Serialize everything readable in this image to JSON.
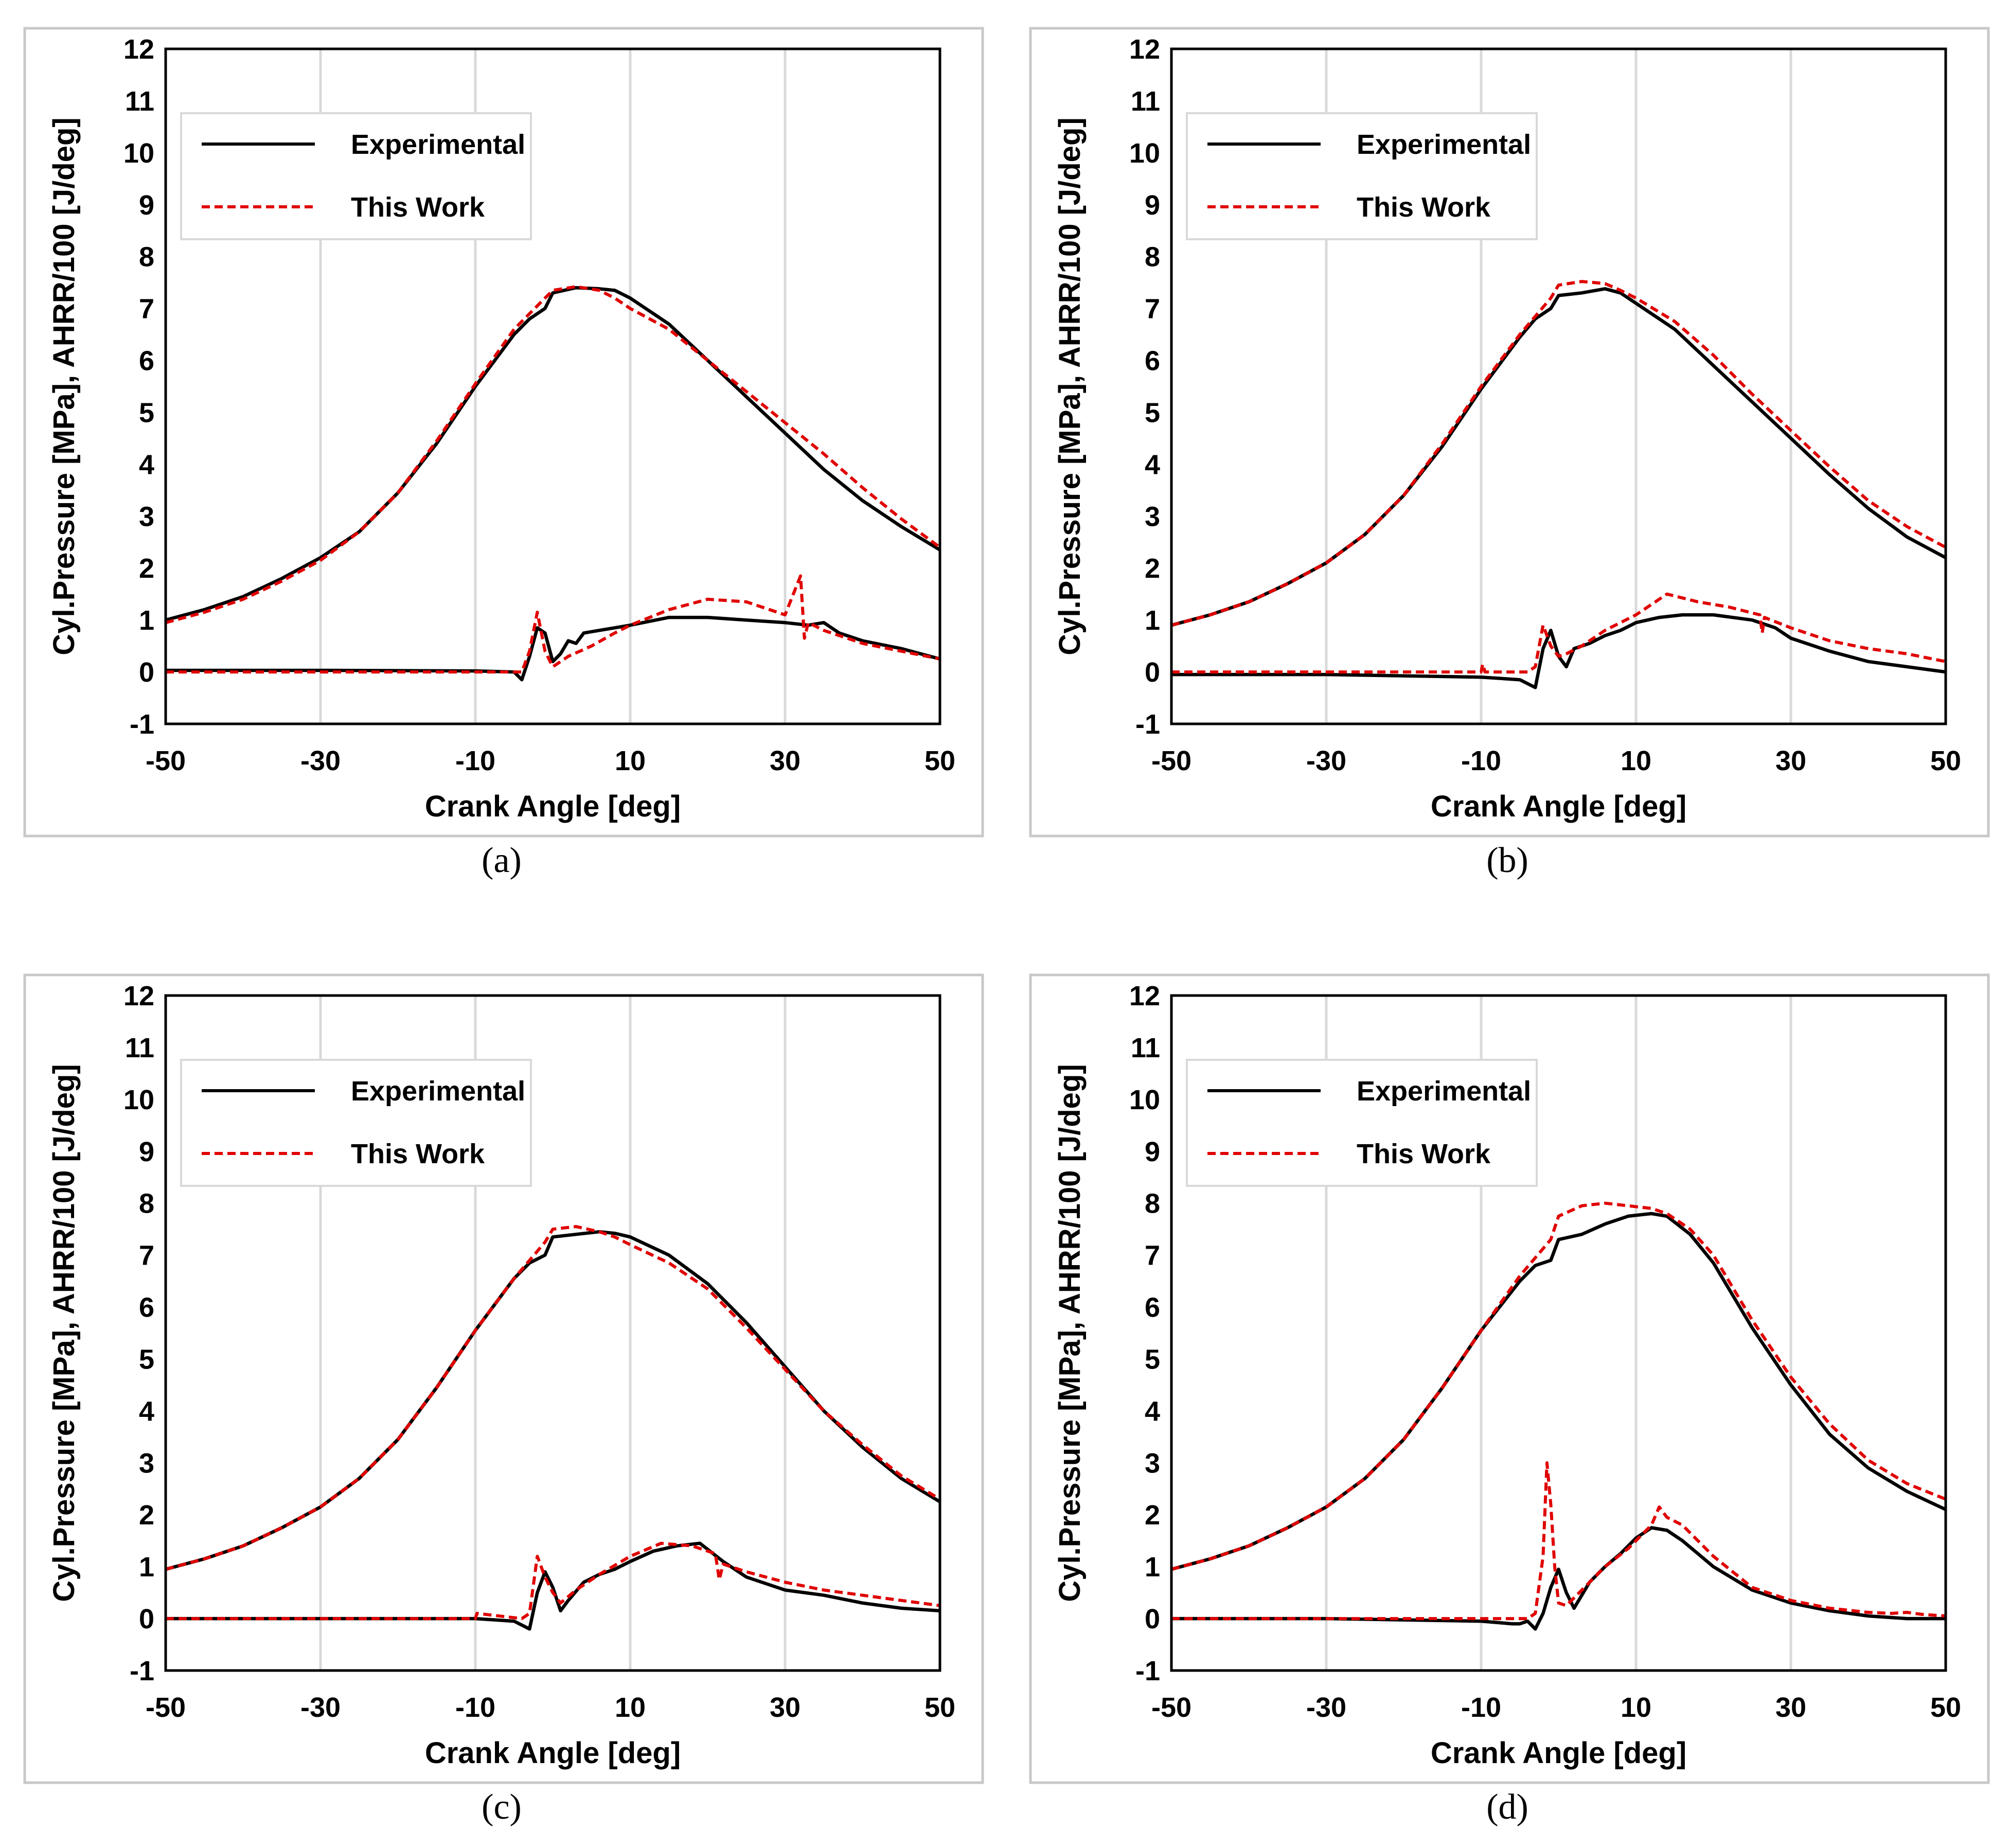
{
  "chart_data": [
    {
      "type": "line",
      "panel": "a",
      "caption": "(a)",
      "xlabel": "Crank Angle [deg]",
      "ylabel": "Cyl.Pressure [MPa], AHRR/100 [J/deg]",
      "xlim": [
        -50,
        50
      ],
      "ylim": [
        -1,
        12
      ],
      "xticks": [
        "-50",
        "-30",
        "-10",
        "10",
        "30",
        "50"
      ],
      "yticks": [
        "-1",
        "0",
        "1",
        "2",
        "3",
        "4",
        "5",
        "6",
        "7",
        "8",
        "9",
        "10",
        "11",
        "12"
      ],
      "grid": "vertical",
      "legend": {
        "position": "top-left",
        "entries": [
          "Experimental",
          "This Work"
        ]
      },
      "series": [
        {
          "name": "Experimental",
          "role": "pressure",
          "color": "#000000",
          "style": "solid",
          "x": [
            -50,
            -45,
            -40,
            -35,
            -30,
            -25,
            -20,
            -15,
            -10,
            -5,
            -3,
            -1,
            0,
            3,
            6,
            8,
            10,
            15,
            20,
            25,
            30,
            35,
            40,
            45,
            50
          ],
          "y": [
            1.0,
            1.2,
            1.45,
            1.8,
            2.2,
            2.7,
            3.45,
            4.4,
            5.5,
            6.5,
            6.8,
            7.0,
            7.3,
            7.4,
            7.38,
            7.35,
            7.2,
            6.7,
            6.0,
            5.3,
            4.6,
            3.9,
            3.3,
            2.8,
            2.35
          ]
        },
        {
          "name": "This Work",
          "role": "pressure",
          "color": "#e00000",
          "style": "dashed",
          "x": [
            -50,
            -45,
            -40,
            -35,
            -30,
            -25,
            -20,
            -15,
            -10,
            -5,
            -3,
            -1,
            0,
            3,
            6,
            8,
            10,
            15,
            20,
            25,
            30,
            35,
            40,
            45,
            50
          ],
          "y": [
            0.95,
            1.15,
            1.4,
            1.75,
            2.15,
            2.7,
            3.45,
            4.45,
            5.55,
            6.6,
            6.9,
            7.2,
            7.35,
            7.42,
            7.35,
            7.2,
            7.0,
            6.6,
            6.0,
            5.4,
            4.8,
            4.2,
            3.55,
            2.95,
            2.4
          ]
        },
        {
          "name": "Experimental",
          "role": "ahrr",
          "color": "#000000",
          "style": "solid",
          "x": [
            -50,
            -30,
            -10,
            -5,
            -4,
            -3,
            -2,
            -1,
            0,
            1,
            2,
            3,
            4,
            6,
            8,
            10,
            15,
            20,
            25,
            30,
            33,
            35,
            37,
            40,
            45,
            50
          ],
          "y": [
            0.03,
            0.03,
            0.02,
            0.0,
            -0.15,
            0.3,
            0.85,
            0.75,
            0.2,
            0.35,
            0.6,
            0.55,
            0.75,
            0.8,
            0.85,
            0.9,
            1.05,
            1.05,
            1.0,
            0.95,
            0.9,
            0.95,
            0.75,
            0.6,
            0.45,
            0.25
          ]
        },
        {
          "name": "This Work",
          "role": "ahrr",
          "color": "#e00000",
          "style": "dashed",
          "x": [
            -50,
            -30,
            -10,
            -4,
            -3,
            -2,
            -1,
            0,
            1,
            2,
            5,
            8,
            10,
            15,
            20,
            25,
            30,
            32,
            32.5,
            33,
            35,
            40,
            45,
            50
          ],
          "y": [
            0.0,
            0.0,
            0.0,
            0.0,
            0.4,
            1.15,
            0.4,
            0.1,
            0.2,
            0.3,
            0.5,
            0.75,
            0.9,
            1.2,
            1.4,
            1.35,
            1.1,
            1.85,
            0.65,
            0.95,
            0.8,
            0.55,
            0.4,
            0.25
          ]
        }
      ]
    },
    {
      "type": "line",
      "panel": "b",
      "caption": "(b)",
      "xlabel": "Crank Angle [deg]",
      "ylabel": "Cyl.Pressure [MPa], AHRR/100 [J/deg]",
      "xlim": [
        -50,
        50
      ],
      "ylim": [
        -1,
        12
      ],
      "xticks": [
        "-50",
        "-30",
        "-10",
        "10",
        "30",
        "50"
      ],
      "yticks": [
        "-1",
        "0",
        "1",
        "2",
        "3",
        "4",
        "5",
        "6",
        "7",
        "8",
        "9",
        "10",
        "11",
        "12"
      ],
      "grid": "vertical",
      "legend": {
        "position": "top-left",
        "entries": [
          "Experimental",
          "This Work"
        ]
      },
      "series": [
        {
          "name": "Experimental",
          "role": "pressure",
          "color": "#000000",
          "style": "solid",
          "x": [
            -50,
            -45,
            -40,
            -35,
            -30,
            -25,
            -20,
            -15,
            -10,
            -5,
            -3,
            -1,
            0,
            3,
            6,
            8,
            10,
            15,
            20,
            25,
            30,
            35,
            40,
            45,
            50
          ],
          "y": [
            0.9,
            1.1,
            1.35,
            1.7,
            2.1,
            2.65,
            3.4,
            4.35,
            5.45,
            6.45,
            6.8,
            7.0,
            7.25,
            7.3,
            7.38,
            7.3,
            7.1,
            6.6,
            5.9,
            5.2,
            4.5,
            3.8,
            3.15,
            2.6,
            2.2
          ]
        },
        {
          "name": "This Work",
          "role": "pressure",
          "color": "#e00000",
          "style": "dashed",
          "x": [
            -50,
            -45,
            -40,
            -35,
            -30,
            -25,
            -20,
            -15,
            -10,
            -5,
            -3,
            -1,
            0,
            3,
            6,
            8,
            10,
            15,
            20,
            25,
            30,
            35,
            40,
            45,
            50
          ],
          "y": [
            0.9,
            1.1,
            1.35,
            1.7,
            2.1,
            2.65,
            3.4,
            4.4,
            5.5,
            6.5,
            6.85,
            7.2,
            7.45,
            7.52,
            7.48,
            7.35,
            7.2,
            6.75,
            6.1,
            5.35,
            4.65,
            3.95,
            3.3,
            2.8,
            2.4
          ]
        },
        {
          "name": "Experimental",
          "role": "ahrr",
          "color": "#000000",
          "style": "solid",
          "x": [
            -50,
            -30,
            -10,
            -5,
            -3,
            -2,
            -1,
            0,
            1,
            2,
            4,
            6,
            8,
            10,
            13,
            16,
            20,
            25,
            28,
            30,
            35,
            40,
            45,
            50
          ],
          "y": [
            -0.05,
            -0.05,
            -0.1,
            -0.15,
            -0.3,
            0.45,
            0.8,
            0.3,
            0.1,
            0.45,
            0.55,
            0.7,
            0.8,
            0.95,
            1.05,
            1.1,
            1.1,
            1.0,
            0.85,
            0.65,
            0.4,
            0.2,
            0.1,
            0.0
          ]
        },
        {
          "name": "This Work",
          "role": "ahrr",
          "color": "#e00000",
          "style": "dashed",
          "x": [
            -50,
            -30,
            -10,
            -9.8,
            -9.5,
            -4,
            -3,
            -2,
            -1,
            0,
            1,
            3,
            6,
            10,
            14,
            18,
            22,
            26,
            26.3,
            26.6,
            30,
            35,
            40,
            45,
            50
          ],
          "y": [
            0.0,
            0.0,
            0.0,
            0.15,
            0.0,
            0.0,
            0.1,
            0.9,
            0.5,
            0.3,
            0.35,
            0.5,
            0.8,
            1.1,
            1.5,
            1.35,
            1.25,
            1.1,
            0.75,
            1.05,
            0.85,
            0.6,
            0.45,
            0.35,
            0.2
          ]
        }
      ]
    },
    {
      "type": "line",
      "panel": "c",
      "caption": "(c)",
      "xlabel": "Crank Angle [deg]",
      "ylabel": "Cyl.Pressure [MPa], AHRR/100 [J/deg]",
      "xlim": [
        -50,
        50
      ],
      "ylim": [
        -1,
        12
      ],
      "xticks": [
        "-50",
        "-30",
        "-10",
        "10",
        "30",
        "50"
      ],
      "yticks": [
        "-1",
        "0",
        "1",
        "2",
        "3",
        "4",
        "5",
        "6",
        "7",
        "8",
        "9",
        "10",
        "11",
        "12"
      ],
      "grid": "vertical",
      "legend": {
        "position": "top-left",
        "entries": [
          "Experimental",
          "This Work"
        ]
      },
      "series": [
        {
          "name": "Experimental",
          "role": "pressure",
          "color": "#000000",
          "style": "solid",
          "x": [
            -50,
            -45,
            -40,
            -35,
            -30,
            -25,
            -20,
            -15,
            -10,
            -5,
            -3,
            -1,
            0,
            3,
            6,
            8,
            10,
            15,
            20,
            25,
            30,
            35,
            40,
            45,
            50
          ],
          "y": [
            0.95,
            1.15,
            1.4,
            1.75,
            2.15,
            2.7,
            3.45,
            4.45,
            5.55,
            6.55,
            6.85,
            7.0,
            7.35,
            7.4,
            7.45,
            7.42,
            7.35,
            7.0,
            6.45,
            5.7,
            4.85,
            4.0,
            3.3,
            2.7,
            2.25
          ]
        },
        {
          "name": "This Work",
          "role": "pressure",
          "color": "#e00000",
          "style": "dashed",
          "x": [
            -50,
            -45,
            -40,
            -35,
            -30,
            -25,
            -20,
            -15,
            -10,
            -5,
            -3,
            -1,
            0,
            3,
            6,
            8,
            10,
            15,
            20,
            25,
            30,
            35,
            40,
            45,
            50
          ],
          "y": [
            0.95,
            1.15,
            1.4,
            1.75,
            2.15,
            2.7,
            3.45,
            4.45,
            5.55,
            6.55,
            6.9,
            7.25,
            7.5,
            7.55,
            7.45,
            7.35,
            7.2,
            6.85,
            6.35,
            5.6,
            4.8,
            4.0,
            3.35,
            2.75,
            2.3
          ]
        },
        {
          "name": "Experimental",
          "role": "ahrr",
          "color": "#000000",
          "style": "solid",
          "x": [
            -50,
            -30,
            -10,
            -5,
            -3,
            -2,
            -1,
            0,
            1,
            2,
            4,
            6,
            8,
            10,
            13,
            16,
            19,
            22,
            25,
            30,
            35,
            40,
            45,
            50
          ],
          "y": [
            0.0,
            0.0,
            0.0,
            -0.05,
            -0.2,
            0.5,
            0.9,
            0.6,
            0.15,
            0.35,
            0.7,
            0.85,
            0.95,
            1.1,
            1.3,
            1.4,
            1.45,
            1.1,
            0.8,
            0.55,
            0.45,
            0.3,
            0.2,
            0.15
          ]
        },
        {
          "name": "This Work",
          "role": "ahrr",
          "color": "#e00000",
          "style": "dashed",
          "x": [
            -50,
            -30,
            -10,
            -9.8,
            -4,
            -3,
            -2,
            -1,
            0,
            1,
            3,
            6,
            10,
            14,
            18,
            21,
            21.5,
            22,
            25,
            30,
            35,
            40,
            45,
            50
          ],
          "y": [
            0.0,
            0.0,
            0.0,
            0.1,
            0.0,
            0.1,
            1.2,
            0.8,
            0.5,
            0.3,
            0.55,
            0.85,
            1.2,
            1.45,
            1.4,
            1.25,
            0.75,
            1.05,
            0.9,
            0.7,
            0.55,
            0.45,
            0.35,
            0.25
          ]
        }
      ]
    },
    {
      "type": "line",
      "panel": "d",
      "caption": "(d)",
      "xlabel": "Crank Angle [deg]",
      "ylabel": "Cyl.Pressure [MPa], AHRR/100 [J/deg]",
      "xlim": [
        -50,
        50
      ],
      "ylim": [
        -1,
        12
      ],
      "xticks": [
        "-50",
        "-30",
        "-10",
        "10",
        "30",
        "50"
      ],
      "yticks": [
        "-1",
        "0",
        "1",
        "2",
        "3",
        "4",
        "5",
        "6",
        "7",
        "8",
        "9",
        "10",
        "11",
        "12"
      ],
      "grid": "vertical",
      "legend": {
        "position": "top-left",
        "entries": [
          "Experimental",
          "This Work"
        ]
      },
      "series": [
        {
          "name": "Experimental",
          "role": "pressure",
          "color": "#000000",
          "style": "solid",
          "x": [
            -50,
            -45,
            -40,
            -35,
            -30,
            -25,
            -20,
            -15,
            -10,
            -5,
            -3,
            -1,
            0,
            3,
            6,
            9,
            12,
            14,
            17,
            20,
            25,
            30,
            35,
            40,
            45,
            50
          ],
          "y": [
            0.95,
            1.15,
            1.4,
            1.75,
            2.15,
            2.7,
            3.45,
            4.45,
            5.55,
            6.5,
            6.8,
            6.9,
            7.3,
            7.4,
            7.6,
            7.75,
            7.8,
            7.75,
            7.4,
            6.85,
            5.6,
            4.5,
            3.55,
            2.9,
            2.45,
            2.1
          ]
        },
        {
          "name": "This Work",
          "role": "pressure",
          "color": "#e00000",
          "style": "dashed",
          "x": [
            -50,
            -45,
            -40,
            -35,
            -30,
            -25,
            -20,
            -15,
            -10,
            -5,
            -3,
            -1,
            0,
            3,
            6,
            9,
            12,
            14,
            17,
            20,
            25,
            30,
            35,
            40,
            45,
            50
          ],
          "y": [
            0.95,
            1.15,
            1.4,
            1.75,
            2.15,
            2.7,
            3.45,
            4.45,
            5.55,
            6.6,
            6.95,
            7.3,
            7.75,
            7.95,
            8.0,
            7.95,
            7.9,
            7.8,
            7.5,
            7.0,
            5.75,
            4.65,
            3.75,
            3.05,
            2.6,
            2.3
          ]
        },
        {
          "name": "Experimental",
          "role": "ahrr",
          "color": "#000000",
          "style": "solid",
          "x": [
            -50,
            -30,
            -10,
            -6,
            -5,
            -4,
            -3,
            -2,
            -1,
            0,
            1,
            2,
            4,
            6,
            8,
            10,
            12,
            14,
            16,
            20,
            25,
            30,
            35,
            40,
            45,
            50
          ],
          "y": [
            0.0,
            0.0,
            -0.05,
            -0.1,
            -0.1,
            -0.05,
            -0.2,
            0.1,
            0.6,
            0.95,
            0.5,
            0.2,
            0.7,
            1.0,
            1.25,
            1.55,
            1.75,
            1.7,
            1.5,
            1.0,
            0.55,
            0.3,
            0.15,
            0.05,
            0.0,
            0.0
          ]
        },
        {
          "name": "This Work",
          "role": "ahrr",
          "color": "#e00000",
          "style": "dashed",
          "x": [
            -50,
            -30,
            -10,
            -4,
            -3,
            -2,
            -1.5,
            -1,
            -0.5,
            0,
            1,
            3,
            6,
            9,
            12,
            13,
            14,
            16,
            20,
            25,
            30,
            35,
            40,
            43,
            45,
            47,
            50
          ],
          "y": [
            0.0,
            0.0,
            0.0,
            0.0,
            0.1,
            1.2,
            3.0,
            2.2,
            1.0,
            0.3,
            0.25,
            0.55,
            1.0,
            1.35,
            1.8,
            2.15,
            1.95,
            1.8,
            1.2,
            0.6,
            0.35,
            0.2,
            0.12,
            0.1,
            0.12,
            0.08,
            0.05
          ]
        }
      ]
    }
  ]
}
